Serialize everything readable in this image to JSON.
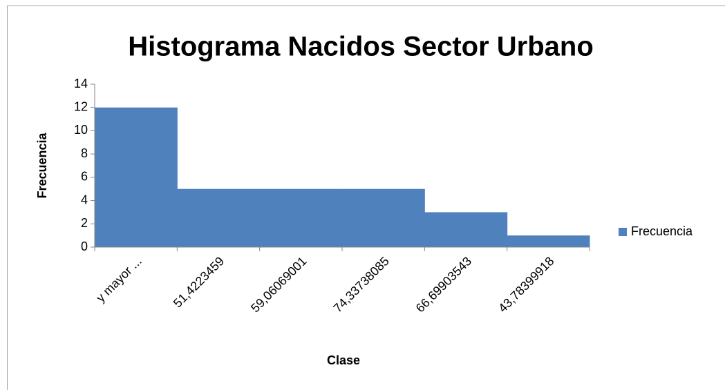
{
  "chart_data": {
    "type": "bar",
    "title": "Histograma Nacidos Sector Urbano",
    "x_label": "Clase",
    "y_label": "Frecuencia",
    "categories": [
      "y mayor ...",
      "51,4223459",
      "59,06069001",
      "74,33738085",
      "66,69903543",
      "43,78399918"
    ],
    "series": [
      {
        "name": "Frecuencia",
        "color": "#4f81bd",
        "values": [
          12,
          5,
          5,
          5,
          3,
          1
        ]
      }
    ],
    "ylim": [
      0,
      14
    ],
    "yticks": [
      0,
      2,
      4,
      6,
      8,
      10,
      12,
      14
    ],
    "grid": false,
    "legend": "right"
  }
}
